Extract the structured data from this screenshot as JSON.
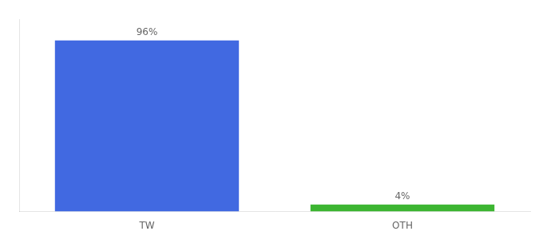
{
  "chart_data": {
    "type": "bar",
    "categories": [
      "TW",
      "OTH"
    ],
    "values": [
      96,
      4
    ],
    "value_labels": [
      "96%",
      "4%"
    ],
    "colors": [
      "#4169e1",
      "#3cb531"
    ],
    "ylim": [
      0,
      108
    ],
    "data_labels": true,
    "tick_labels": "x",
    "grid": false
  }
}
